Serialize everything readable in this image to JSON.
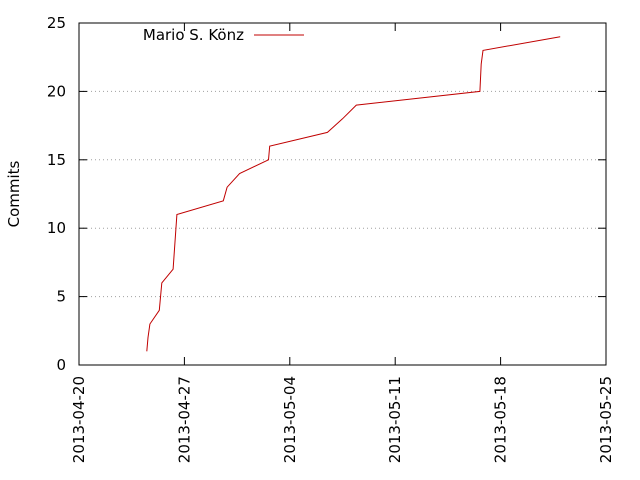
{
  "chart_data": {
    "type": "line",
    "title": "",
    "xlabel": "",
    "ylabel": "Commits",
    "x_type": "date",
    "xlim": [
      "2013-04-20",
      "2013-05-25"
    ],
    "ylim": [
      0,
      25
    ],
    "x_ticks": [
      "2013-04-20",
      "2013-04-27",
      "2013-05-04",
      "2013-05-11",
      "2013-05-18",
      "2013-05-25"
    ],
    "y_ticks": [
      0,
      5,
      10,
      15,
      20,
      25
    ],
    "grid": "horizontal dotted",
    "legend_position": "top-left",
    "series": [
      {
        "name": "Mario S. Könz",
        "color": "#c00000",
        "points": [
          {
            "x": "2013-04-24 12:00",
            "y": 1
          },
          {
            "x": "2013-04-24 14:00",
            "y": 2
          },
          {
            "x": "2013-04-24 17:00",
            "y": 3
          },
          {
            "x": "2013-04-25 08:00",
            "y": 4
          },
          {
            "x": "2013-04-25 12:00",
            "y": 6
          },
          {
            "x": "2013-04-26 06:00",
            "y": 7
          },
          {
            "x": "2013-04-26 12:00",
            "y": 11
          },
          {
            "x": "2013-04-29 14:00",
            "y": 12
          },
          {
            "x": "2013-04-29 20:00",
            "y": 13
          },
          {
            "x": "2013-04-30 16:00",
            "y": 14
          },
          {
            "x": "2013-05-02 14:00",
            "y": 15
          },
          {
            "x": "2013-05-02 16:00",
            "y": 16
          },
          {
            "x": "2013-05-06 12:00",
            "y": 17
          },
          {
            "x": "2013-05-07 12:00",
            "y": 18
          },
          {
            "x": "2013-05-08 10:00",
            "y": 19
          },
          {
            "x": "2013-05-16 15:00",
            "y": 20
          },
          {
            "x": "2013-05-16 17:00",
            "y": 22
          },
          {
            "x": "2013-05-16 20:00",
            "y": 23
          },
          {
            "x": "2013-05-21 23:00",
            "y": 24
          }
        ]
      }
    ]
  }
}
